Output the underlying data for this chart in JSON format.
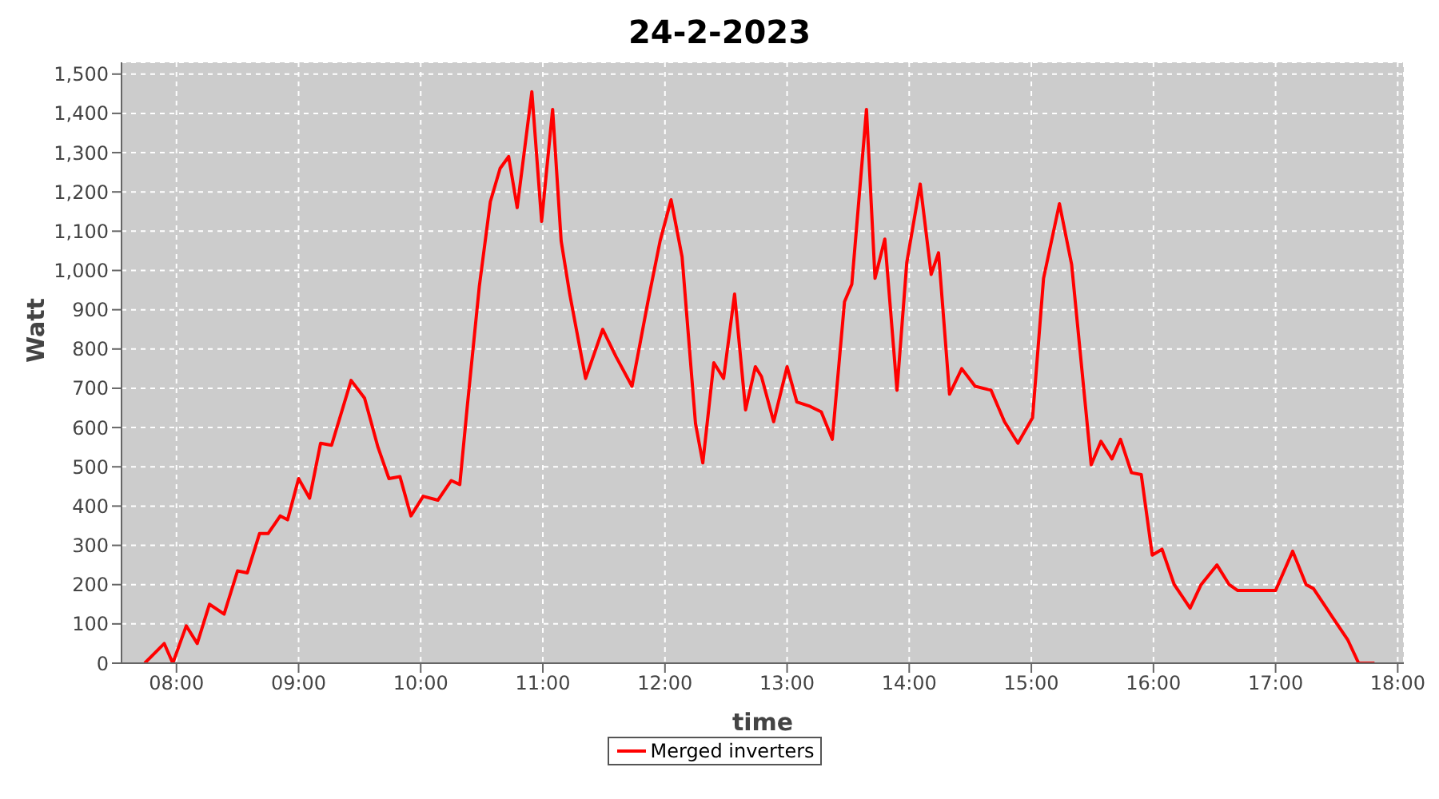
{
  "chart_data": {
    "type": "line",
    "title": "24-2-2023",
    "xlabel": "time",
    "ylabel": "Watt",
    "x": [
      7.74,
      7.9,
      7.97,
      8.08,
      8.17,
      8.27,
      8.39,
      8.5,
      8.58,
      8.68,
      8.75,
      8.85,
      8.91,
      9.0,
      9.09,
      9.18,
      9.27,
      9.43,
      9.54,
      9.65,
      9.74,
      9.83,
      9.92,
      10.02,
      10.14,
      10.25,
      10.32,
      10.38,
      10.48,
      10.57,
      10.65,
      10.72,
      10.79,
      10.91,
      10.99,
      11.08,
      11.15,
      11.22,
      11.35,
      11.49,
      11.6,
      11.73,
      11.86,
      11.96,
      12.05,
      12.14,
      12.25,
      12.31,
      12.4,
      12.48,
      12.57,
      12.66,
      12.74,
      12.79,
      12.89,
      13.0,
      13.08,
      13.18,
      13.28,
      13.37,
      13.47,
      13.53,
      13.65,
      13.72,
      13.8,
      13.9,
      13.98,
      14.09,
      14.18,
      14.24,
      14.33,
      14.43,
      14.54,
      14.67,
      14.78,
      14.89,
      15.01,
      15.1,
      15.23,
      15.33,
      15.49,
      15.57,
      15.66,
      15.73,
      15.82,
      15.9,
      15.99,
      16.07,
      16.17,
      16.3,
      16.39,
      16.52,
      16.62,
      16.69,
      17.0,
      17.14,
      17.25,
      17.31,
      17.46,
      17.59,
      17.68,
      17.81
    ],
    "series": [
      {
        "name": "Merged inverters",
        "color": "#ff0000",
        "values": [
          0,
          50,
          0,
          95,
          50,
          150,
          125,
          235,
          230,
          330,
          330,
          375,
          365,
          470,
          420,
          560,
          555,
          720,
          675,
          550,
          470,
          475,
          375,
          425,
          415,
          465,
          455,
          650,
          960,
          1175,
          1260,
          1290,
          1160,
          1455,
          1125,
          1410,
          1075,
          940,
          725,
          850,
          780,
          705,
          920,
          1075,
          1180,
          1035,
          610,
          510,
          765,
          725,
          940,
          645,
          755,
          730,
          615,
          755,
          665,
          655,
          640,
          570,
          920,
          965,
          1410,
          980,
          1080,
          695,
          1020,
          1220,
          990,
          1045,
          685,
          750,
          705,
          695,
          615,
          560,
          625,
          980,
          1170,
          1015,
          505,
          565,
          520,
          570,
          485,
          480,
          275,
          290,
          200,
          140,
          200,
          250,
          200,
          185,
          185,
          285,
          200,
          190,
          120,
          60,
          0,
          0
        ]
      }
    ],
    "xlim": [
      7.55,
      18.05
    ],
    "xticks": [
      {
        "value": 8,
        "label": "08:00"
      },
      {
        "value": 9,
        "label": "09:00"
      },
      {
        "value": 10,
        "label": "10:00"
      },
      {
        "value": 11,
        "label": "11:00"
      },
      {
        "value": 12,
        "label": "12:00"
      },
      {
        "value": 13,
        "label": "13:00"
      },
      {
        "value": 14,
        "label": "14:00"
      },
      {
        "value": 15,
        "label": "15:00"
      },
      {
        "value": 16,
        "label": "16:00"
      },
      {
        "value": 17,
        "label": "17:00"
      },
      {
        "value": 18,
        "label": "18:00"
      }
    ],
    "ylim": [
      0,
      1530
    ],
    "yticks": [
      0,
      100,
      200,
      300,
      400,
      500,
      600,
      700,
      800,
      900,
      {
        "value": 1000,
        "label": "1,000"
      },
      {
        "value": 1100,
        "label": "1,100"
      },
      {
        "value": 1200,
        "label": "1,200"
      },
      {
        "value": 1300,
        "label": "1,300"
      },
      {
        "value": 1400,
        "label": "1,400"
      },
      {
        "value": 1500,
        "label": "1,500"
      }
    ],
    "grid": true,
    "legend": "bottom"
  }
}
